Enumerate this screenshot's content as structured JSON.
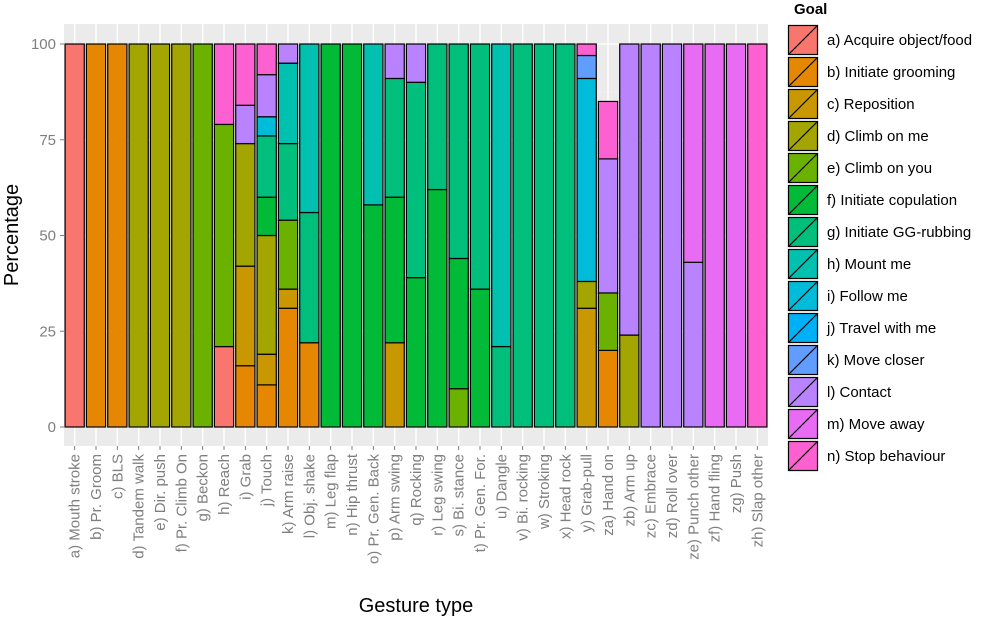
{
  "chart_data": {
    "type": "bar",
    "stacked": true,
    "xlabel": "Gesture type",
    "ylabel": "Percentage",
    "ylim": [
      0,
      100
    ],
    "yticks": [
      0,
      25,
      50,
      75,
      100
    ],
    "grid": true,
    "legend_placement": "right",
    "legend_title": "Goal",
    "categories": [
      "a) Mouth stroke",
      "b) Pr. Groom",
      "c) BLS",
      "d) Tandem walk",
      "e) Dir. push",
      "f) Pr. Climb On",
      "g) Beckon",
      "h) Reach",
      "i) Grab",
      "j) Touch",
      "k) Arm raise",
      "l) Obj. shake",
      "m) Leg flap",
      "n) Hip thrust",
      "o) Pr. Gen. Back",
      "p) Arm swing",
      "q) Rocking",
      "r) Leg swing",
      "s) Bi. stance",
      "t) Pr. Gen. For.",
      "u) Dangle",
      "v) Bi. rocking",
      "w) Stroking",
      "x) Head rock",
      "y) Grab-pull",
      "za) Hand on",
      "zb) Arm up",
      "zc) Embrace",
      "zd) Roll over",
      "ze) Punch other",
      "zf) Hand fling",
      "zg) Push",
      "zh) Slap other"
    ],
    "series": [
      {
        "name": "a) Acquire object/food",
        "color": "#F8766D",
        "values": [
          100,
          0,
          0,
          0,
          0,
          0,
          0,
          21,
          0,
          0,
          0,
          0,
          0,
          0,
          0,
          0,
          0,
          0,
          0,
          0,
          0,
          0,
          0,
          0,
          0,
          0,
          0,
          0,
          0,
          0,
          0,
          0,
          0
        ]
      },
      {
        "name": "b) Initiate grooming",
        "color": "#E58700",
        "values": [
          0,
          100,
          100,
          0,
          0,
          0,
          0,
          0,
          16,
          11,
          31,
          22,
          0,
          0,
          0,
          0,
          0,
          0,
          0,
          0,
          0,
          0,
          0,
          0,
          0,
          20,
          0,
          0,
          0,
          0,
          0,
          0,
          0
        ]
      },
      {
        "name": "c) Reposition",
        "color": "#C99800",
        "values": [
          0,
          0,
          0,
          0,
          0,
          0,
          0,
          0,
          26,
          8,
          5,
          0,
          0,
          0,
          0,
          22,
          0,
          0,
          0,
          0,
          0,
          0,
          0,
          0,
          31,
          0,
          0,
          0,
          0,
          0,
          0,
          0,
          0
        ]
      },
      {
        "name": "d) Climb on me",
        "color": "#A3A500",
        "values": [
          0,
          0,
          0,
          100,
          100,
          100,
          0,
          0,
          32,
          31,
          0,
          0,
          0,
          0,
          0,
          0,
          0,
          0,
          0,
          0,
          0,
          0,
          0,
          0,
          7,
          0,
          24,
          0,
          0,
          0,
          0,
          0,
          0
        ]
      },
      {
        "name": "e) Climb on you",
        "color": "#6BB100",
        "values": [
          0,
          0,
          0,
          0,
          0,
          0,
          100,
          58,
          0,
          0,
          18,
          0,
          0,
          0,
          0,
          0,
          0,
          0,
          10,
          0,
          0,
          0,
          0,
          0,
          0,
          15,
          0,
          0,
          0,
          0,
          0,
          0,
          0
        ]
      },
      {
        "name": "f) Initiate copulation",
        "color": "#00BA38",
        "values": [
          0,
          0,
          0,
          0,
          0,
          0,
          0,
          0,
          0,
          10,
          0,
          0,
          100,
          100,
          58,
          38,
          39,
          62,
          34,
          36,
          0,
          0,
          0,
          0,
          0,
          0,
          0,
          0,
          0,
          0,
          0,
          0,
          0
        ]
      },
      {
        "name": "g) Initiate GG-rubbing",
        "color": "#00BF7D",
        "values": [
          0,
          0,
          0,
          0,
          0,
          0,
          0,
          0,
          0,
          16,
          20,
          34,
          0,
          0,
          0,
          31,
          51,
          38,
          56,
          64,
          21,
          100,
          100,
          100,
          0,
          0,
          0,
          0,
          0,
          0,
          0,
          0,
          0
        ]
      },
      {
        "name": "h) Mount me",
        "color": "#00C0AF",
        "values": [
          0,
          0,
          0,
          0,
          0,
          0,
          0,
          0,
          0,
          0,
          21,
          44,
          0,
          0,
          42,
          0,
          0,
          0,
          0,
          0,
          79,
          0,
          0,
          0,
          0,
          0,
          0,
          0,
          0,
          0,
          0,
          0,
          0
        ]
      },
      {
        "name": "i) Follow me",
        "color": "#00BCD8",
        "values": [
          0,
          0,
          0,
          0,
          0,
          0,
          0,
          0,
          0,
          5,
          0,
          0,
          0,
          0,
          0,
          0,
          0,
          0,
          0,
          0,
          0,
          0,
          0,
          0,
          53,
          0,
          0,
          0,
          0,
          0,
          0,
          0,
          0
        ]
      },
      {
        "name": "j) Travel with me",
        "color": "#00B0F6",
        "values": [
          0,
          0,
          0,
          0,
          0,
          0,
          0,
          0,
          0,
          0,
          0,
          0,
          0,
          0,
          0,
          0,
          0,
          0,
          0,
          0,
          0,
          0,
          0,
          0,
          0,
          0,
          0,
          0,
          0,
          0,
          0,
          0,
          0
        ]
      },
      {
        "name": "k) Move closer",
        "color": "#619CFF",
        "values": [
          0,
          0,
          0,
          0,
          0,
          0,
          0,
          0,
          0,
          0,
          0,
          0,
          0,
          0,
          0,
          0,
          0,
          0,
          0,
          0,
          0,
          0,
          0,
          0,
          6,
          0,
          0,
          0,
          0,
          0,
          0,
          0,
          0
        ]
      },
      {
        "name": "l) Contact",
        "color": "#B983FF",
        "values": [
          0,
          0,
          0,
          0,
          0,
          0,
          0,
          0,
          10,
          11,
          5,
          0,
          0,
          0,
          0,
          9,
          10,
          0,
          0,
          0,
          0,
          0,
          0,
          0,
          0,
          35,
          76,
          100,
          100,
          43,
          0,
          0,
          0
        ]
      },
      {
        "name": "m) Move away",
        "color": "#E76BF3",
        "values": [
          0,
          0,
          0,
          0,
          0,
          0,
          0,
          0,
          0,
          0,
          0,
          0,
          0,
          0,
          0,
          0,
          0,
          0,
          0,
          0,
          0,
          0,
          0,
          0,
          0,
          0,
          0,
          0,
          0,
          57,
          100,
          100,
          0
        ]
      },
      {
        "name": "n) Stop behaviour",
        "color": "#FD61D1",
        "values": [
          0,
          0,
          0,
          0,
          0,
          0,
          0,
          21,
          16,
          8,
          0,
          0,
          0,
          0,
          0,
          0,
          0,
          0,
          0,
          0,
          0,
          0,
          0,
          0,
          3,
          15,
          0,
          0,
          0,
          0,
          0,
          0,
          100
        ]
      }
    ]
  }
}
